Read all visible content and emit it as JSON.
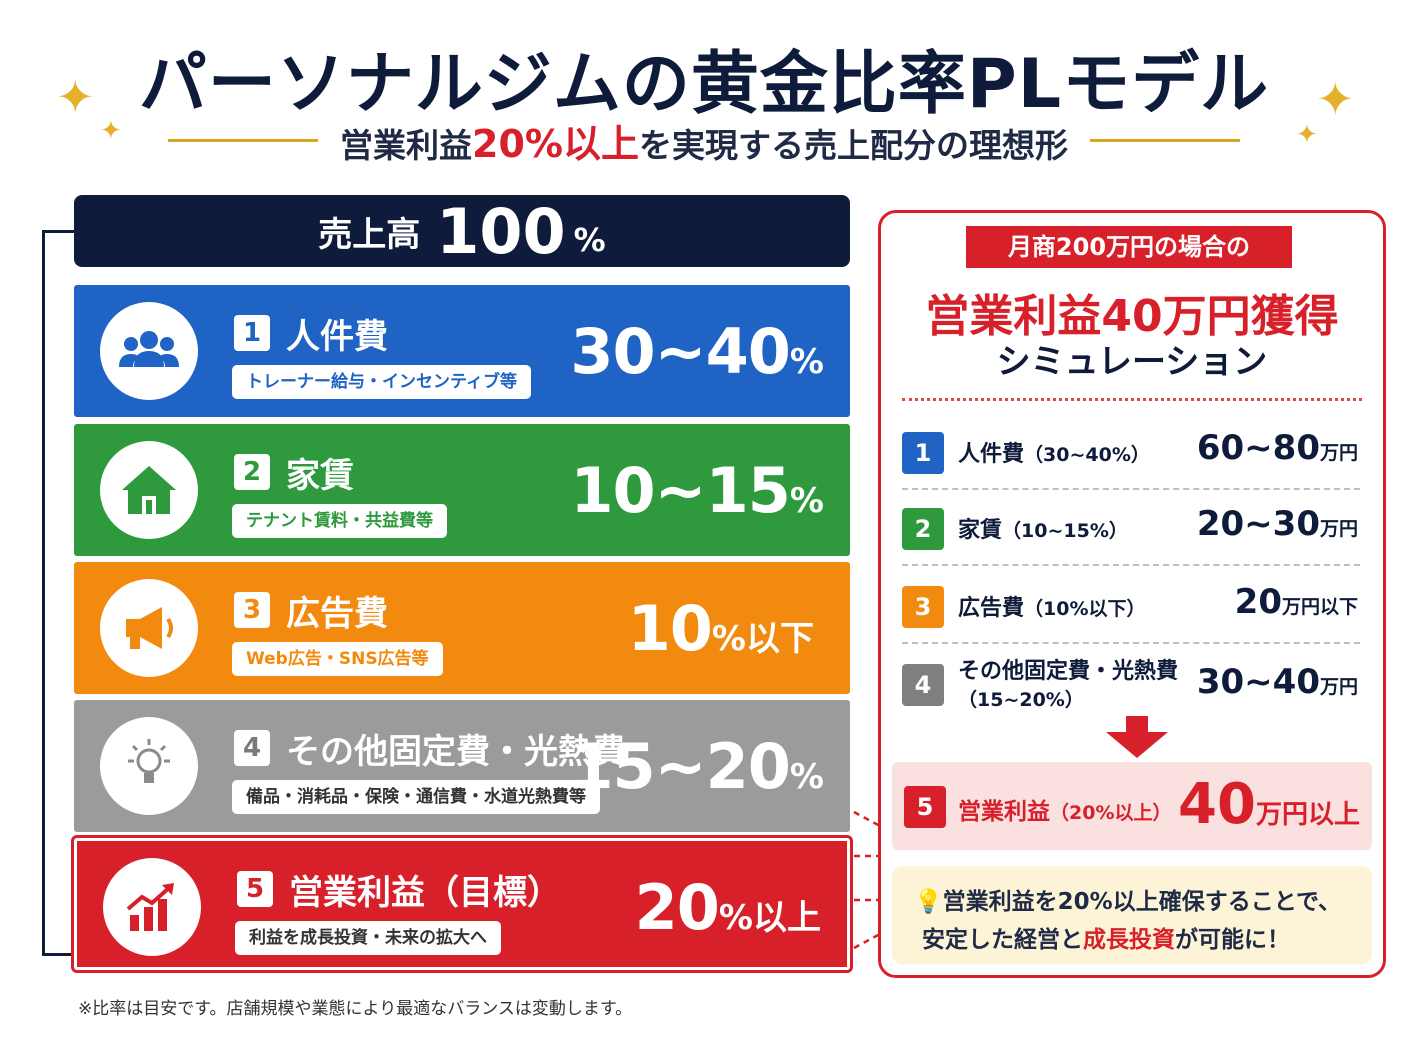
{
  "header": {
    "title": "パーソナルジムの黄金比率PLモデル",
    "subtitle_pre": "営業利益",
    "subtitle_highlight": "20%以上",
    "subtitle_post": "を実現する売上配分の理想形"
  },
  "sales": {
    "label": "売上高",
    "value": "100",
    "unit": "%"
  },
  "blocks": [
    {
      "number": "1",
      "name": "人件費",
      "tag": "トレーナー給与・インセンティブ等",
      "value": "30~40",
      "unit": "%",
      "icon": "people-icon",
      "color": "#1f63c4"
    },
    {
      "number": "2",
      "name": "家賃",
      "tag": "テナント賃料・共益費等",
      "value": "10~15",
      "unit": "%",
      "icon": "house-icon",
      "color": "#2e9a3d"
    },
    {
      "number": "3",
      "name": "広告費",
      "tag": "Web広告・SNS広告等",
      "value": "10",
      "unit": "%以下",
      "icon": "megaphone-icon",
      "color": "#f18a0e"
    },
    {
      "number": "4",
      "name": "その他固定費・光熱費",
      "tag": "備品・消耗品・保険・通信費・水道光熱費等",
      "value": "15~20",
      "unit": "%",
      "icon": "lightbulb-icon",
      "color": "#9b9b9b"
    },
    {
      "number": "5",
      "name": "営業利益（目標）",
      "tag": "利益を成長投資・未来の拡大へ",
      "value": "20",
      "unit": "%以上",
      "icon": "growth-chart-icon",
      "color": "#d7202a"
    }
  ],
  "footnote": "※比率は目安です。店舗規模や業態により最適なバランスは変動します。",
  "panel": {
    "badge": "月商200万円の場合の",
    "headline": "営業利益40万円獲得",
    "sub": "シミュレーション",
    "rows": [
      {
        "number": "1",
        "label": "人件費",
        "ratio": "（30~40%）",
        "value": "60~80",
        "unit": "万円",
        "color": "#1f63c4"
      },
      {
        "number": "2",
        "label": "家賃",
        "ratio": "（10~15%）",
        "value": "20~30",
        "unit": "万円",
        "color": "#2e9a3d"
      },
      {
        "number": "3",
        "label": "広告費",
        "ratio": "（10%以下）",
        "value": "20",
        "unit": "万円以下",
        "color": "#f18a0e"
      },
      {
        "number": "4",
        "label": "その他固定費・光熱費",
        "ratio": "（15~20%）",
        "value": "30~40",
        "unit": "万円",
        "color": "#7f7f7f"
      }
    ],
    "profit": {
      "number": "5",
      "label": "営業利益",
      "ratio": "（20%以上）",
      "value": "40",
      "unit": "万円以上"
    },
    "note": {
      "line1": "営業利益を20%以上確保することで、",
      "line2_pre": "安定した経営と",
      "line2_highlight": "成長投資",
      "line2_post": "が可能に！"
    }
  }
}
